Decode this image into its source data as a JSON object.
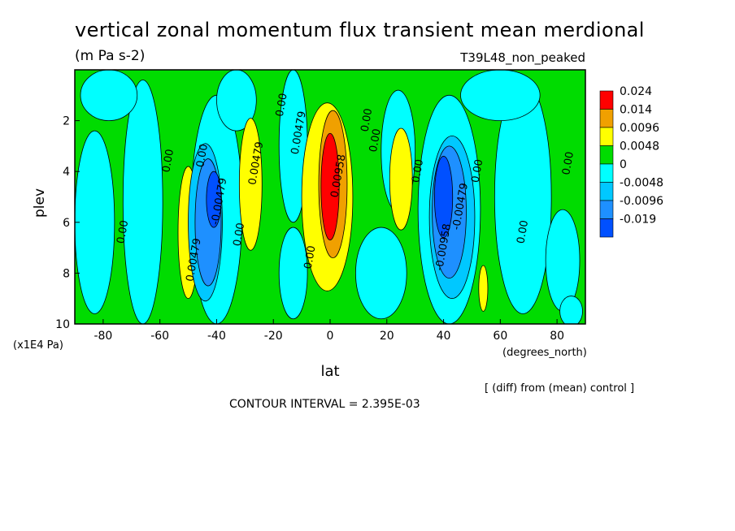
{
  "chart_data": {
    "type": "heatmap",
    "title": "vertical zonal momentum flux transient mean merdional",
    "subtitle": "(m Pa s-2)",
    "run_label": "T39L48_non_peaked",
    "xlabel": "lat",
    "x_units": "(degrees_north)",
    "ylabel": "plev",
    "y_units": "(x1E4 Pa)",
    "xlim": [
      -90,
      90
    ],
    "ylim": [
      0,
      10
    ],
    "y_inverted": true,
    "x_ticks": [
      -80,
      -60,
      -40,
      -20,
      0,
      20,
      40,
      60,
      80
    ],
    "y_ticks": [
      2,
      4,
      6,
      8,
      10
    ],
    "colorbar_levels": [
      "0.024",
      "0.014",
      "0.0096",
      "0.0048",
      "0",
      "-0.0048",
      "-0.0096",
      "-0.019"
    ],
    "colorbar_colors": [
      "#ff0000",
      "#f0a000",
      "#ffff00",
      "#00dc00",
      "#00ffff",
      "#00c8ff",
      "#1e90ff",
      "#0050ff"
    ],
    "colorbar_placement": "right",
    "contour_labels": [
      {
        "text": "0.00",
        "lat": -72,
        "plev": 6.4
      },
      {
        "text": "0.00",
        "lat": -56,
        "plev": 3.6
      },
      {
        "text": "0.00",
        "lat": -44,
        "plev": 3.4
      },
      {
        "text": "0.00479",
        "lat": -47,
        "plev": 7.5
      },
      {
        "text": "-0.00479",
        "lat": -38,
        "plev": 5.2
      },
      {
        "text": "0.00",
        "lat": -31,
        "plev": 6.5
      },
      {
        "text": "0.00479",
        "lat": -25,
        "plev": 3.7
      },
      {
        "text": "0.00",
        "lat": -16,
        "plev": 1.4
      },
      {
        "text": "0.00479",
        "lat": -10,
        "plev": 2.5
      },
      {
        "text": "0.00",
        "lat": -6,
        "plev": 7.4
      },
      {
        "text": "0.00958",
        "lat": 4,
        "plev": 4.2
      },
      {
        "text": "0.00",
        "lat": 14,
        "plev": 2.0
      },
      {
        "text": "0.00",
        "lat": 17,
        "plev": 2.8
      },
      {
        "text": "0.00",
        "lat": 32,
        "plev": 4.0
      },
      {
        "text": "-0.00958",
        "lat": 41,
        "plev": 7.0
      },
      {
        "text": "-0.00479",
        "lat": 47,
        "plev": 5.4
      },
      {
        "text": "0.00",
        "lat": 53,
        "plev": 4.0
      },
      {
        "text": "0.00",
        "lat": 69,
        "plev": 6.4
      },
      {
        "text": "0.00",
        "lat": 85,
        "plev": 3.7
      }
    ],
    "grid": false
  },
  "footer": {
    "note": "[ (diff) from (mean) control ]",
    "contour_interval": "CONTOUR INTERVAL = 2.395E-03"
  }
}
